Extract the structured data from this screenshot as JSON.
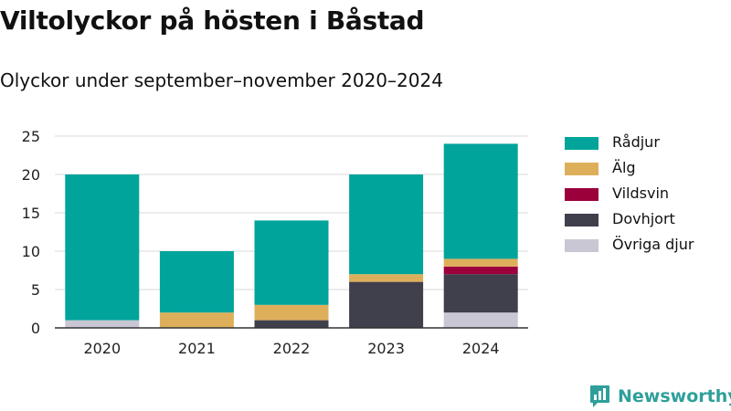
{
  "title": "Viltolyckor på hösten i Båstad",
  "subtitle": "Olyckor under september–november 2020–2024",
  "brand": {
    "name": "Newsworthy",
    "icon": "newsworthy-logo-icon",
    "color": "#2e9f9a"
  },
  "chart_data": {
    "type": "bar",
    "stacked": true,
    "title": "Viltolyckor på hösten i Båstad",
    "subtitle": "Olyckor under september–november 2020–2024",
    "categories": [
      "2020",
      "2021",
      "2022",
      "2023",
      "2024"
    ],
    "series": [
      {
        "name": "Övriga djur",
        "color": "#c9c7d4",
        "values": [
          1,
          0,
          0,
          0,
          2
        ]
      },
      {
        "name": "Dovhjort",
        "color": "#403f4c",
        "values": [
          0,
          0,
          1,
          6,
          5
        ]
      },
      {
        "name": "Vildsvin",
        "color": "#9b003c",
        "values": [
          0,
          0,
          0,
          0,
          1
        ]
      },
      {
        "name": "Älg",
        "color": "#deaf5b",
        "values": [
          0,
          2,
          2,
          1,
          1
        ]
      },
      {
        "name": "Rådjur",
        "color": "#00a49a",
        "values": [
          19,
          8,
          11,
          13,
          15
        ]
      }
    ],
    "legend_order": [
      "Rådjur",
      "Älg",
      "Vildsvin",
      "Dovhjort",
      "Övriga djur"
    ],
    "legend_placement": "right",
    "ylim": [
      0,
      25
    ],
    "yticks": [
      0,
      5,
      10,
      15,
      20,
      25
    ],
    "grid": true
  }
}
